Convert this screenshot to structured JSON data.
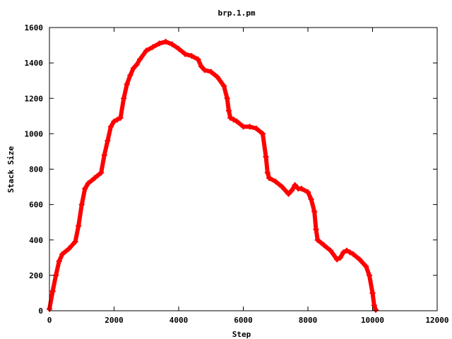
{
  "colors": {
    "series": "#ff0000",
    "axis": "#000000",
    "background": "#ffffff"
  },
  "chart_data": {
    "type": "scatter",
    "title": "brp.1.pm",
    "xlabel": "Step",
    "ylabel": "Stack Size",
    "xlim": [
      0,
      12000
    ],
    "ylim": [
      0,
      1600
    ],
    "x_ticks": [
      0,
      2000,
      4000,
      6000,
      8000,
      10000,
      12000
    ],
    "y_ticks": [
      0,
      200,
      400,
      600,
      800,
      1000,
      1200,
      1400,
      1600
    ],
    "x_tick_labels": [
      "0",
      "2000",
      "4000",
      "6000",
      "8000",
      "10000",
      "12000"
    ],
    "y_tick_labels": [
      "0",
      "200",
      "400",
      "600",
      "800",
      "1000",
      "1200",
      "1400",
      "1600"
    ],
    "grid": false,
    "legend": "none",
    "marker": "plus",
    "series": [
      {
        "x": [
          0,
          100,
          200,
          300,
          400,
          600,
          800,
          900,
          1000,
          1100,
          1200,
          1400,
          1600,
          1700,
          1800,
          1900,
          2000,
          2100,
          2200,
          2300,
          2400,
          2500,
          2600,
          2700,
          2800,
          3000,
          3200,
          3400,
          3600,
          3800,
          4000,
          4200,
          4400,
          4600,
          4700,
          4800,
          5000,
          5200,
          5400,
          5500,
          5550,
          5600,
          5700,
          5800,
          6000,
          6200,
          6400,
          6600,
          6700,
          6750,
          6800,
          7000,
          7200,
          7400,
          7500,
          7600,
          7700,
          7800,
          8000,
          8100,
          8200,
          8250,
          8300,
          8500,
          8700,
          8900,
          9000,
          9100,
          9200,
          9300,
          9400,
          9600,
          9800,
          9900,
          10000,
          10050,
          10100
        ],
        "y": [
          10,
          110,
          200,
          280,
          320,
          350,
          390,
          480,
          600,
          690,
          720,
          750,
          780,
          880,
          960,
          1040,
          1070,
          1080,
          1090,
          1200,
          1280,
          1330,
          1370,
          1390,
          1420,
          1470,
          1490,
          1510,
          1520,
          1505,
          1480,
          1450,
          1440,
          1420,
          1380,
          1360,
          1350,
          1320,
          1270,
          1200,
          1130,
          1090,
          1080,
          1070,
          1040,
          1040,
          1030,
          1000,
          870,
          780,
          750,
          730,
          700,
          660,
          680,
          710,
          690,
          690,
          670,
          630,
          560,
          460,
          400,
          370,
          340,
          290,
          300,
          330,
          340,
          330,
          320,
          290,
          250,
          200,
          100,
          30,
          5
        ]
      }
    ]
  }
}
